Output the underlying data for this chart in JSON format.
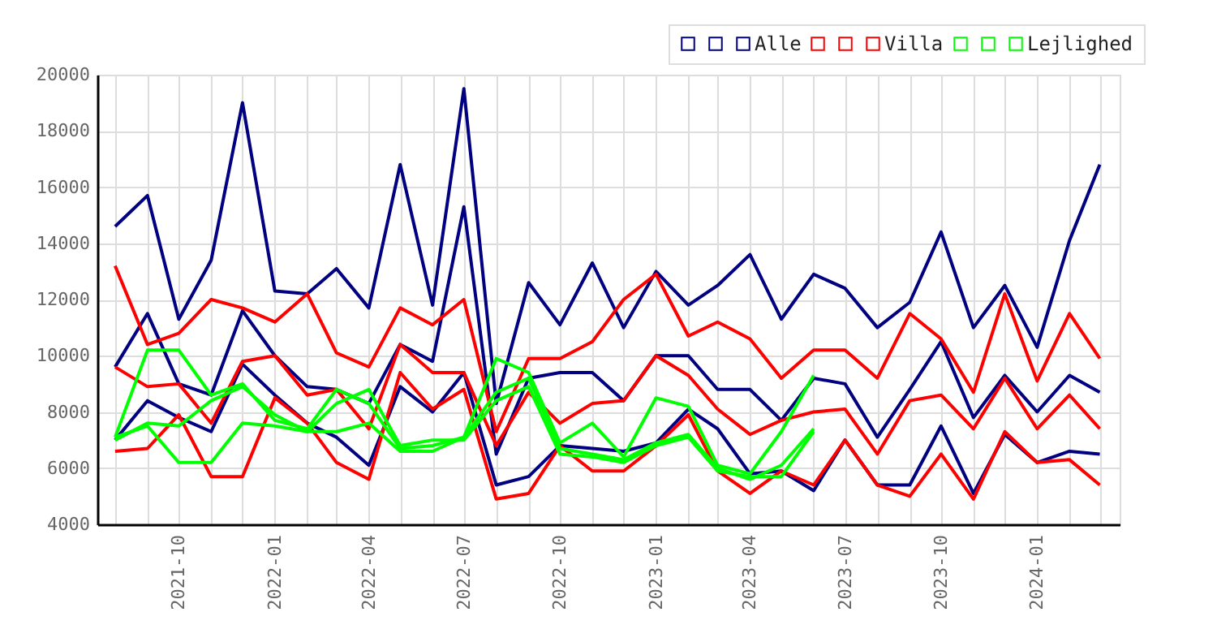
{
  "chart_data": {
    "type": "line",
    "x": [
      "2021-08",
      "2021-09",
      "2021-10",
      "2021-11",
      "2021-12",
      "2022-01",
      "2022-02",
      "2022-03",
      "2022-04",
      "2022-05",
      "2022-06",
      "2022-07",
      "2022-08",
      "2022-09",
      "2022-10",
      "2022-11",
      "2022-12",
      "2023-01",
      "2023-02",
      "2023-03",
      "2023-04",
      "2023-05",
      "2023-06",
      "2023-07",
      "2023-08",
      "2023-09",
      "2023-10",
      "2023-11",
      "2023-12",
      "2024-01",
      "2024-02",
      "2024-03"
    ],
    "series": [
      {
        "name": null,
        "color": "#000080",
        "values": [
          14600,
          15700,
          11300,
          13400,
          19000,
          12300,
          12200,
          13100,
          11700,
          16800,
          11800,
          19500,
          8300,
          12600,
          11100,
          13300,
          11000,
          13000,
          11800,
          12500,
          13600,
          11300,
          12900,
          12400,
          11000,
          11900,
          14400,
          11000,
          12500,
          10300,
          14100,
          16800
        ]
      },
      {
        "name": null,
        "color": "#000080",
        "values": [
          9600,
          11500,
          9000,
          8600,
          11600,
          10000,
          8900,
          8800,
          8300,
          10400,
          9800,
          15300,
          6500,
          9200,
          9400,
          9400,
          8400,
          10000,
          10000,
          8800,
          8800,
          7700,
          9200,
          9000,
          7100,
          8800,
          10500,
          7800,
          9300,
          8000,
          9300,
          8700
        ]
      },
      {
        "name": "Alle",
        "color": "#000080",
        "values": [
          7000,
          8400,
          7800,
          7300,
          9700,
          8600,
          7600,
          7100,
          6100,
          8900,
          8000,
          9400,
          5400,
          5700,
          6800,
          6700,
          6600,
          6900,
          8100,
          7400,
          5800,
          5900,
          5200,
          7000,
          5400,
          5400,
          7500,
          5100,
          7200,
          6200,
          6600,
          6500
        ]
      },
      {
        "name": null,
        "color": "#ff0000",
        "values": [
          13200,
          10400,
          10800,
          12000,
          11700,
          11200,
          12200,
          10100,
          9600,
          11700,
          11100,
          12000,
          7300,
          9900,
          9900,
          10500,
          12000,
          12900,
          10700,
          11200,
          10600,
          9200,
          10200,
          10200,
          9200,
          11500,
          10600,
          8700,
          12200,
          9100,
          11500,
          9900
        ]
      },
      {
        "name": null,
        "color": "#ff0000",
        "values": [
          9600,
          8900,
          9000,
          7600,
          9800,
          10000,
          8600,
          8800,
          7400,
          10400,
          9400,
          9400,
          6800,
          8700,
          7600,
          8300,
          8400,
          10000,
          9300,
          8100,
          7200,
          7700,
          8000,
          8100,
          6500,
          8400,
          8600,
          7400,
          9200,
          7400,
          8600,
          7400
        ]
      },
      {
        "name": "Villa",
        "color": "#ff0000",
        "values": [
          6600,
          6700,
          7900,
          5700,
          5700,
          8500,
          7600,
          6200,
          5600,
          9400,
          8100,
          8800,
          4900,
          5100,
          6800,
          5900,
          5900,
          6800,
          7900,
          5900,
          5100,
          5900,
          5400,
          7000,
          5400,
          5000,
          6500,
          4900,
          7300,
          6200,
          6300,
          5400
        ]
      },
      {
        "name": null,
        "color": "#00ff00",
        "values": [
          7100,
          10200,
          10200,
          8600,
          9000,
          7700,
          7400,
          8800,
          8300,
          6700,
          6800,
          7100,
          9900,
          9400,
          6900,
          7600,
          6400,
          8500,
          8200,
          6100,
          5800,
          7300,
          9300,
          null,
          null,
          null,
          null,
          null,
          null,
          null,
          null,
          null
        ]
      },
      {
        "name": null,
        "color": "#00ff00",
        "values": [
          7000,
          7600,
          7500,
          8400,
          8900,
          7900,
          7300,
          7300,
          7600,
          6600,
          6600,
          7100,
          8700,
          9200,
          6700,
          6500,
          6300,
          6900,
          7200,
          6000,
          5600,
          6100,
          7400,
          null,
          null,
          null,
          null,
          null,
          null,
          null,
          null,
          null
        ]
      },
      {
        "name": "Lejlighed",
        "color": "#00ff00",
        "values": [
          7100,
          7500,
          6200,
          6200,
          7600,
          7500,
          7300,
          8300,
          8800,
          6800,
          7000,
          7000,
          8400,
          8900,
          6500,
          6400,
          6200,
          6800,
          7100,
          5900,
          5700,
          5700,
          7300,
          null,
          null,
          null,
          null,
          null,
          null,
          null,
          null,
          null
        ]
      }
    ],
    "xlim": [
      "2021-07-15",
      "2024-03-20"
    ],
    "xticks": [
      {
        "value": "2021-08",
        "label": null
      },
      {
        "value": "2021-09",
        "label": null
      },
      "2021-10",
      {
        "value": "2021-11",
        "label": null
      },
      {
        "value": "2021-12",
        "label": null
      },
      "2022-01",
      {
        "value": "2022-02",
        "label": null
      },
      {
        "value": "2022-03",
        "label": null
      },
      "2022-04",
      {
        "value": "2022-05",
        "label": null
      },
      {
        "value": "2022-06",
        "label": null
      },
      "2022-07",
      {
        "value": "2022-08",
        "label": null
      },
      {
        "value": "2022-09",
        "label": null
      },
      "2022-10",
      {
        "value": "2022-11",
        "label": null
      },
      {
        "value": "2022-12",
        "label": null
      },
      "2023-01",
      {
        "value": "2023-02",
        "label": null
      },
      {
        "value": "2023-03",
        "label": null
      },
      "2023-04",
      {
        "value": "2023-05",
        "label": null
      },
      {
        "value": "2023-06",
        "label": null
      },
      "2023-07",
      {
        "value": "2023-08",
        "label": null
      },
      {
        "value": "2023-09",
        "label": null
      },
      "2023-10",
      {
        "value": "2023-11",
        "label": null
      },
      {
        "value": "2023-12",
        "label": null
      },
      "2024-01",
      {
        "value": "2024-02",
        "label": null
      },
      {
        "value": "2024-03",
        "label": null
      }
    ],
    "ylim": [
      4000,
      20000
    ],
    "yticks": [
      4000,
      6000,
      8000,
      10000,
      12000,
      14000,
      16000,
      18000,
      20000
    ],
    "grid": true,
    "legend": "top right"
  }
}
